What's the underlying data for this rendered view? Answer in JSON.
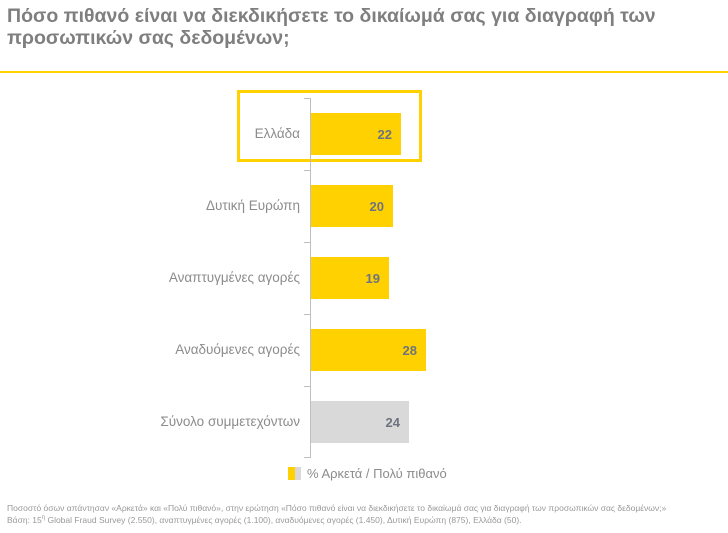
{
  "title": "Πόσο πιθανό είναι να διεκδικήσετε το δικαίωμά σας για διαγραφή των προσωπικών σας δεδομένων;",
  "colors": {
    "accent_yellow": "#FFD100",
    "bar_gray": "#D9D9D9",
    "title_gray": "#7F7F7F",
    "category_label_gray": "#8C8C8C",
    "value_label_gray": "#6D7380",
    "axis_gray": "#BFBFBF",
    "footnote_gray": "#999999"
  },
  "chart_data": {
    "type": "bar",
    "orientation": "horizontal",
    "categories": [
      "Ελλάδα",
      "Δυτική Ευρώπη",
      "Αναπτυγμένες αγορές",
      "Αναδυόμενες αγορές",
      "Σύνολο συμμετεχόντων"
    ],
    "values": [
      22,
      20,
      19,
      28,
      24
    ],
    "bar_colors": [
      "#FFD100",
      "#FFD100",
      "#FFD100",
      "#FFD100",
      "#D9D9D9"
    ],
    "highlighted_category": "Ελλάδα",
    "xlim": [
      0,
      44
    ],
    "grid": false,
    "data_labels": "inside-end",
    "legend": {
      "label": "% Αρκετά / Πολύ πιθανό",
      "position": "bottom",
      "swatch_colors": [
        "#FFD100",
        "#D9D9D9"
      ]
    }
  },
  "footnotes": {
    "line1": "Ποσοστό όσων απάντησαν «Αρκετά» και «Πολύ πιθανό», στην ερώτηση «Πόσο πιθανό είναι να διεκδικήσετε το δικαίωμά σας για διαγραφή των προσωπικών σας δεδομένων;»",
    "line2_prefix": "Βάση: 15",
    "line2_sup": "η",
    "line2_rest": " Global Fraud Survey (2.550), αναπτυγμένες αγορές (1.100), αναδυόμενες αγορές (1.450), Δυτική Ευρώπη (875), Ελλάδα (50)."
  }
}
